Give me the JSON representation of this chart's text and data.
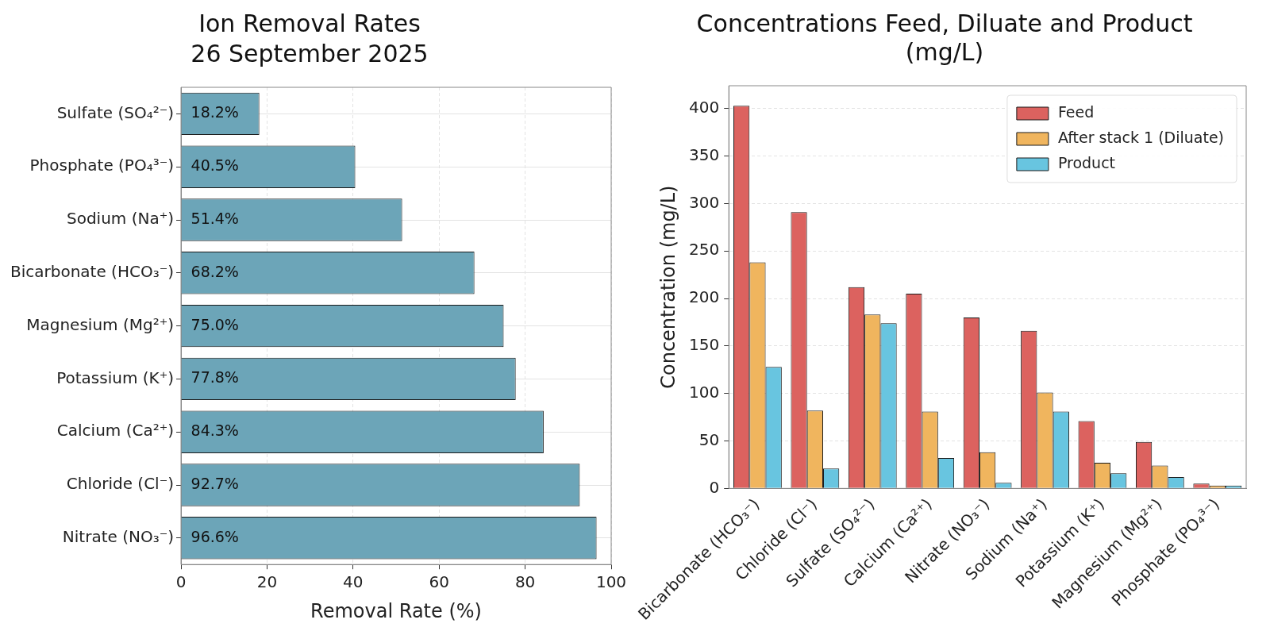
{
  "chart_data": [
    {
      "type": "bar",
      "orientation": "horizontal",
      "title": "Ion Removal Rates",
      "subtitle": "26 September 2025",
      "xlabel": "Removal Rate (%)",
      "categories": [
        "Sulfate (SO₄²⁻)",
        "Phosphate (PO₄³⁻)",
        "Sodium (Na⁺)",
        "Bicarbonate (HCO₃⁻)",
        "Magnesium (Mg²⁺)",
        "Potassium (K⁺)",
        "Calcium (Ca²⁺)",
        "Chloride (Cl⁻)",
        "Nitrate (NO₃⁻)"
      ],
      "values": [
        18.2,
        40.5,
        51.4,
        68.2,
        75.0,
        77.8,
        84.3,
        92.7,
        96.6
      ],
      "value_labels": [
        "18.2%",
        "40.5%",
        "51.4%",
        "68.2%",
        "75.0%",
        "77.8%",
        "84.3%",
        "92.7%",
        "96.6%"
      ],
      "color": "#6ca5b8",
      "xlim": [
        0,
        100
      ],
      "xticks": [
        0,
        20,
        40,
        60,
        80,
        100
      ],
      "grid": true
    },
    {
      "type": "bar",
      "title": "Concentrations Feed, Diluate and Product (mg/L)",
      "ylabel": "Concentration (mg/L)",
      "categories": [
        "Bicarbonate (HCO₃⁻)",
        "Chloride (Cl⁻)",
        "Sulfate (SO₄²⁻)",
        "Calcium (Ca²⁺)",
        "Nitrate (NO₃⁻)",
        "Sodium (Na⁺)",
        "Potassium (K⁺)",
        "Magnesium (Mg²⁺)",
        "Phosphate (PO₄³⁻)"
      ],
      "series": [
        {
          "name": "Feed",
          "color": "#dc625f",
          "values": [
            403,
            291,
            212,
            205,
            180,
            166,
            71,
            49,
            5
          ]
        },
        {
          "name": "After stack 1 (Diluate)",
          "color": "#f0b55e",
          "values": [
            238,
            82,
            183,
            81,
            38,
            101,
            27,
            24,
            3
          ]
        },
        {
          "name": "Product",
          "color": "#68c5e0",
          "values": [
            128,
            21,
            174,
            32,
            6,
            81,
            16,
            12,
            3
          ]
        }
      ],
      "ylim": [
        0,
        424
      ],
      "yticks": [
        0,
        50,
        100,
        150,
        200,
        250,
        300,
        350,
        400
      ],
      "grid": "y",
      "legend": "top right"
    }
  ]
}
